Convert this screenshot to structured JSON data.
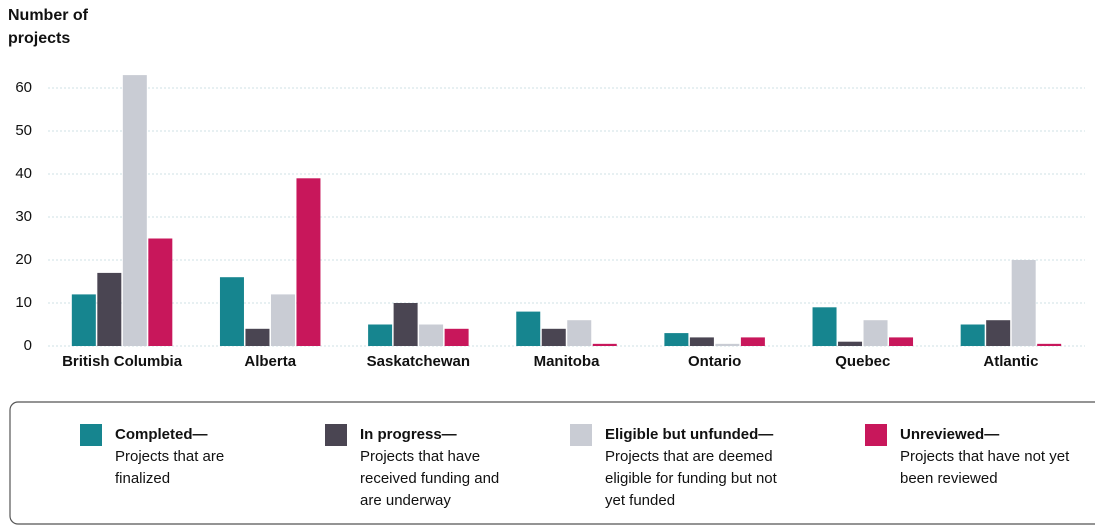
{
  "chart_data": {
    "type": "bar",
    "y_axis_label": "Number of projects",
    "categories": [
      "British Columbia",
      "Alberta",
      "Saskatchewan",
      "Manitoba",
      "Ontario",
      "Quebec",
      "Atlantic"
    ],
    "series": [
      {
        "name": "Completed—",
        "description": "Projects that are finalized",
        "color": "#16858f",
        "values": [
          12,
          16,
          5,
          8,
          3,
          9,
          5
        ]
      },
      {
        "name": "In progress—",
        "description": "Projects that have received funding and are underway",
        "color": "#4a4552",
        "values": [
          17,
          4,
          10,
          4,
          2,
          1,
          6
        ]
      },
      {
        "name": "Eligible but unfunded—",
        "description": "Projects that are deemed eligible for funding but not yet funded",
        "color": "#c9ccd4",
        "values": [
          63,
          12,
          5,
          6,
          0.5,
          6,
          20
        ]
      },
      {
        "name": "Unreviewed—",
        "description": "Projects that have not yet been reviewed",
        "color": "#c8175b",
        "values": [
          25,
          39,
          4,
          0.5,
          2,
          2,
          0.5
        ]
      }
    ],
    "ylim": [
      0,
      65
    ],
    "yticks": [
      0,
      10,
      20,
      30,
      40,
      50,
      60
    ],
    "grid": true
  }
}
